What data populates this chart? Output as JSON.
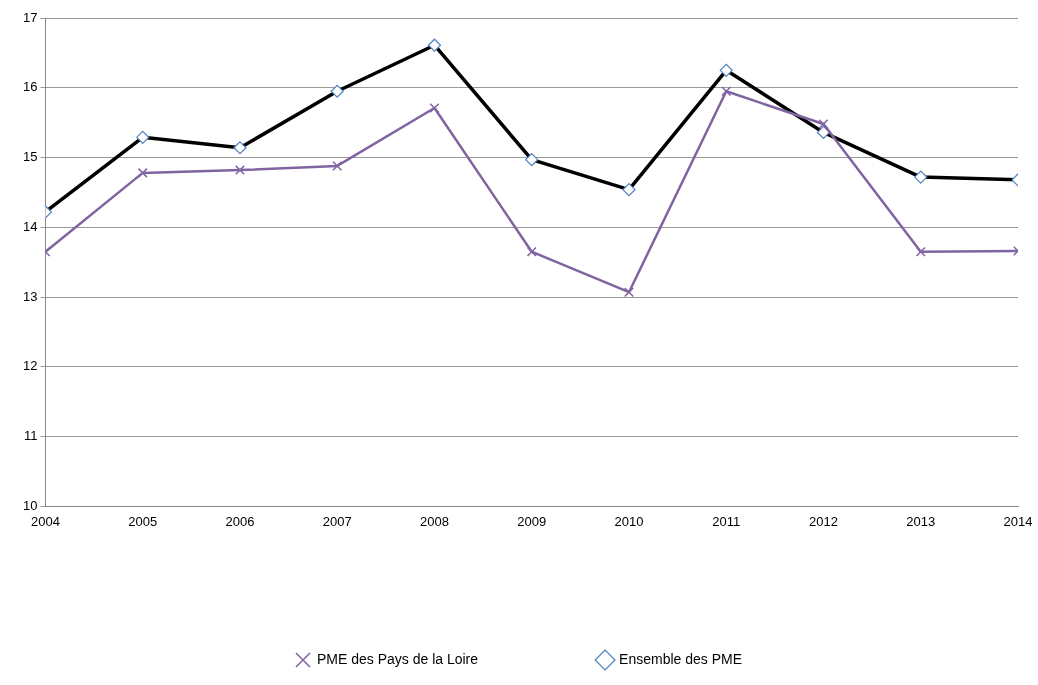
{
  "chart_data": {
    "type": "line",
    "x": [
      2004,
      2005,
      2006,
      2007,
      2008,
      2009,
      2010,
      2011,
      2012,
      2013,
      2014
    ],
    "series": [
      {
        "name": "PME des Pays de la Loire",
        "color": "#8064a2",
        "marker": "cross",
        "values": [
          13.65,
          14.78,
          14.82,
          14.88,
          15.71,
          13.65,
          13.07,
          15.95,
          15.48,
          13.65,
          13.66
        ]
      },
      {
        "name": "Ensemble des PME",
        "color": "#000000",
        "marker": "diamond",
        "values": [
          14.22,
          15.29,
          15.14,
          15.95,
          16.61,
          14.97,
          14.54,
          16.25,
          15.36,
          14.72,
          14.68
        ]
      }
    ],
    "xlim": [
      2004,
      2014
    ],
    "xticks": [
      2004,
      2005,
      2006,
      2007,
      2008,
      2009,
      2010,
      2011,
      2012,
      2013,
      2014
    ],
    "ylim": [
      10,
      17
    ],
    "yticks": [
      10,
      11,
      12,
      13,
      14,
      15,
      16,
      17
    ],
    "grid": "y",
    "legend": "bottom",
    "line_style": "solid"
  }
}
